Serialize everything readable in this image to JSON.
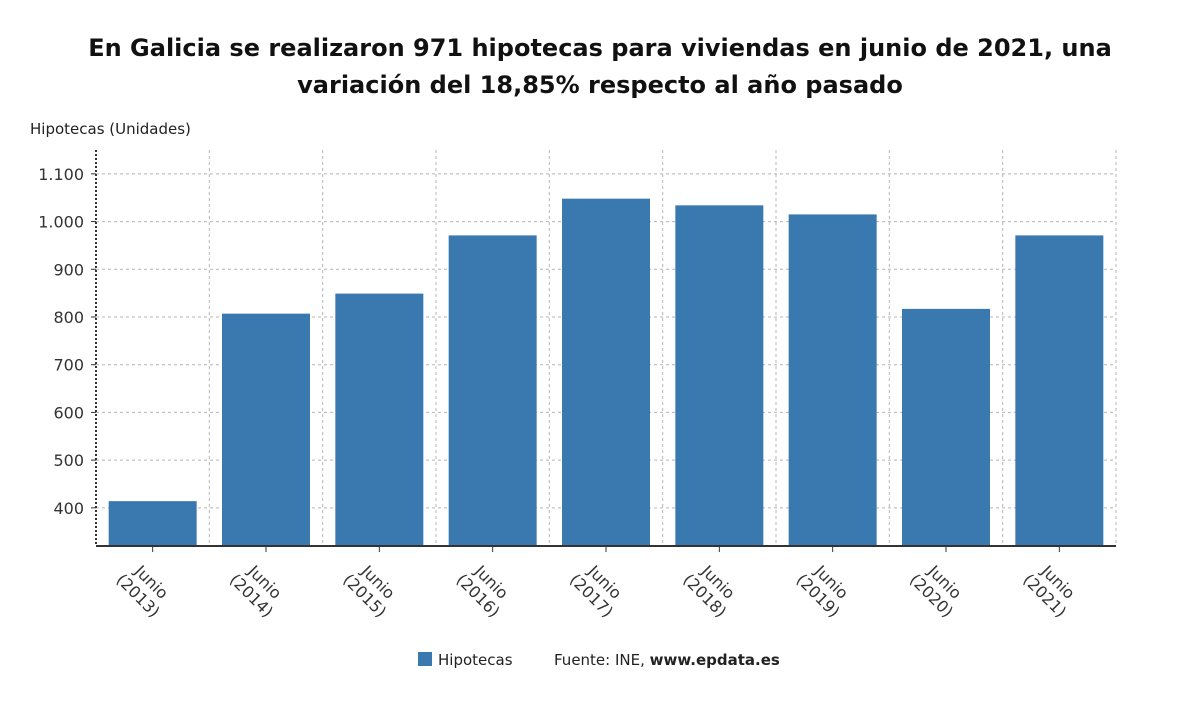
{
  "chart_data": {
    "type": "bar",
    "title": "En Galicia se realizaron 971 hipotecas para viviendas en junio de 2021, una variación del 18,85% respecto al año pasado",
    "ylabel": "Hipotecas (Unidades)",
    "categories": [
      [
        "Junio",
        "(2013)"
      ],
      [
        "Junio",
        "(2014)"
      ],
      [
        "Junio",
        "(2015)"
      ],
      [
        "Junio",
        "(2016)"
      ],
      [
        "Junio",
        "(2017)"
      ],
      [
        "Junio",
        "(2018)"
      ],
      [
        "Junio",
        "(2019)"
      ],
      [
        "Junio",
        "(2020)"
      ],
      [
        "Junio",
        "(2021)"
      ]
    ],
    "series": [
      {
        "name": "Hipotecas",
        "color": "#3a78b0",
        "values": [
          414,
          807,
          849,
          971,
          1048,
          1034,
          1015,
          817,
          971
        ]
      }
    ],
    "ylim": [
      320,
      1150
    ],
    "yticks": [
      400,
      500,
      600,
      700,
      800,
      900,
      1000,
      1100
    ],
    "ytick_labels": [
      "400",
      "500",
      "600",
      "700",
      "800",
      "900",
      "1.000",
      "1.100"
    ],
    "grid": true,
    "legend_position": "bottom"
  },
  "source": {
    "label": "Fuente: INE, ",
    "site": "www.epdata.es"
  }
}
